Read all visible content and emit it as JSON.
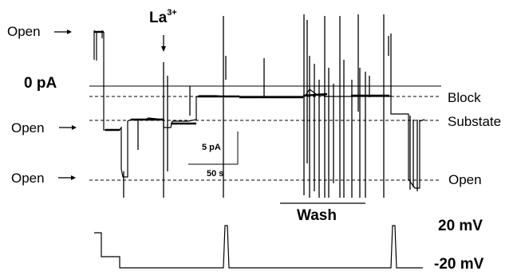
{
  "labels": {
    "open_top": "Open",
    "open_mid": "Open",
    "open_bottom": "Open",
    "zero_pa": "0 pA",
    "lanthanum": "La",
    "lanthanum_sup": "3+",
    "block": "Block",
    "substate": "Substate",
    "open_right": "Open",
    "scale_current": "5 pA",
    "scale_time": "50 s",
    "wash": "Wash",
    "voltage_high": "20 mV",
    "voltage_low": "-20 mV"
  }
}
